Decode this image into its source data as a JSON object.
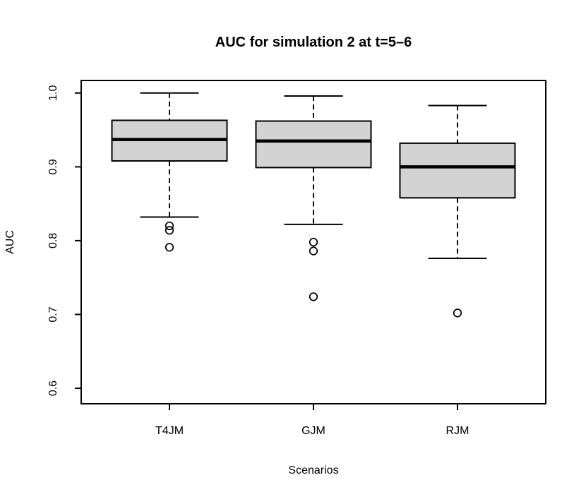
{
  "figure": {
    "background": "#ffffff"
  },
  "chart_data": {
    "type": "boxplot",
    "title": "AUC for simulation 2 at t=5–6",
    "xlabel": "Scenarios",
    "ylabel": "AUC",
    "categories": [
      "T4JM",
      "GJM",
      "RJM"
    ],
    "ylim": [
      0.579,
      1.017
    ],
    "yticks": [
      1.0,
      0.9,
      0.8,
      0.7,
      0.6
    ],
    "ytick_labels": [
      "1.0",
      "0.9",
      "0.8",
      "0.7",
      "0.6"
    ],
    "grid": false,
    "legend": "none",
    "box_fill": "#d3d3d3",
    "line_color": "#000000",
    "series": [
      {
        "name": "T4JM",
        "whisker_low": 0.832,
        "q1": 0.908,
        "median": 0.937,
        "q3": 0.963,
        "whisker_high": 1.0,
        "outliers": [
          0.82,
          0.814,
          0.791
        ]
      },
      {
        "name": "GJM",
        "whisker_low": 0.822,
        "q1": 0.899,
        "median": 0.935,
        "q3": 0.962,
        "whisker_high": 0.996,
        "outliers": [
          0.798,
          0.786,
          0.724
        ]
      },
      {
        "name": "RJM",
        "whisker_low": 0.776,
        "q1": 0.858,
        "median": 0.9,
        "q3": 0.932,
        "whisker_high": 0.983,
        "outliers": [
          0.702
        ]
      }
    ]
  }
}
